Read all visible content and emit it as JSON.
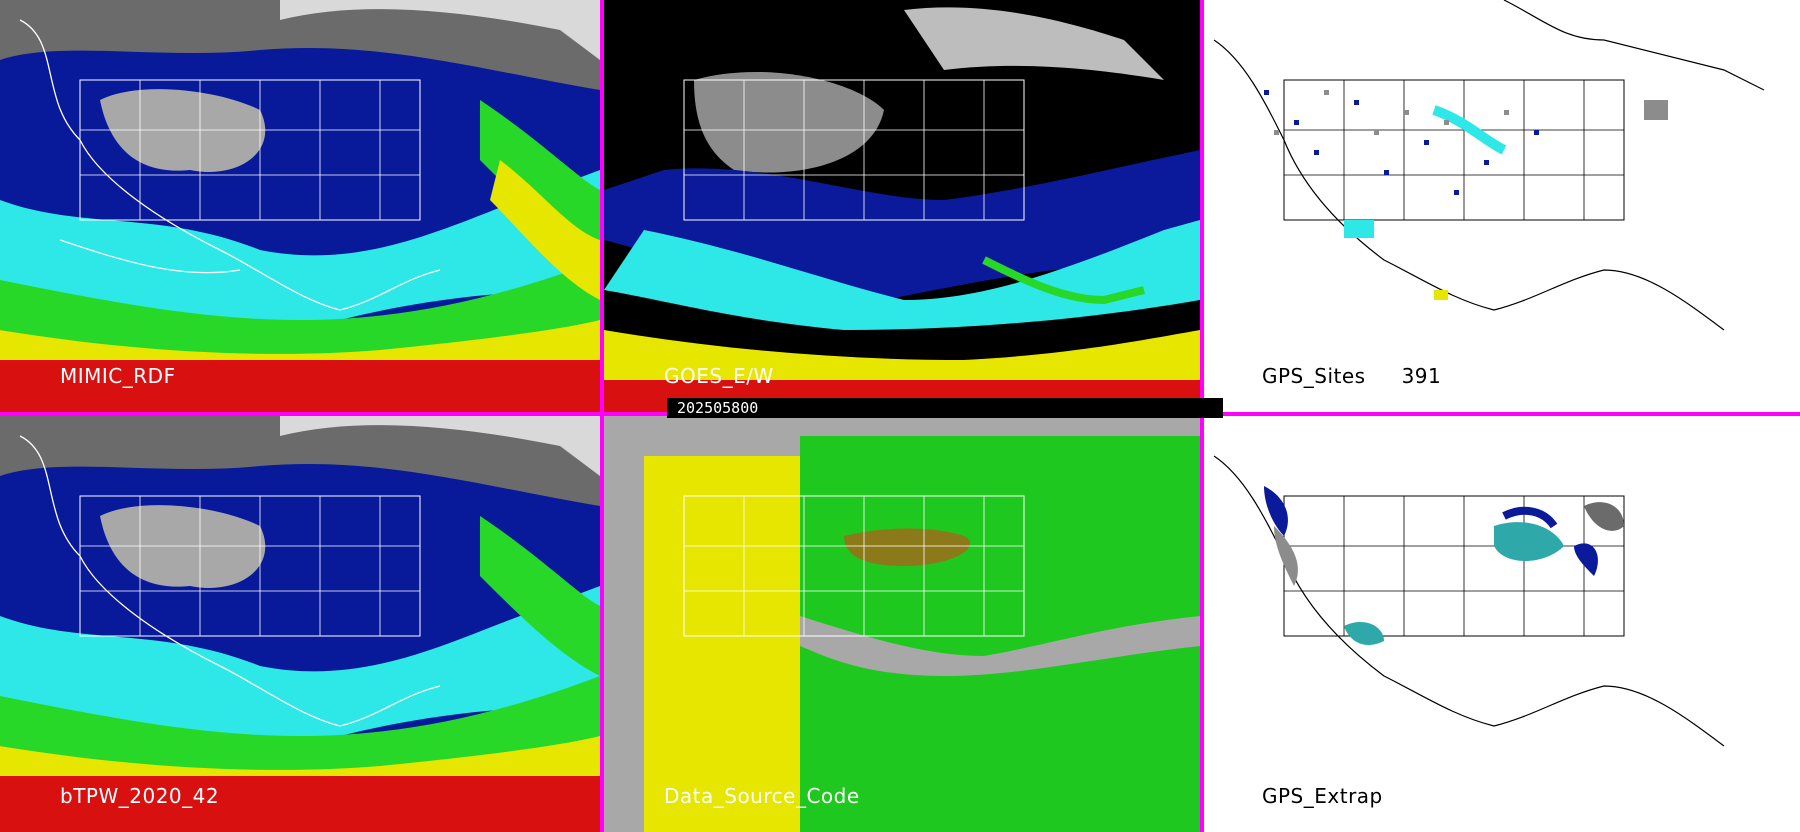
{
  "panels": [
    {
      "id": "mimic-tpw",
      "label": "MIMIC_RDF",
      "style": "tpw"
    },
    {
      "id": "goes-ew",
      "label": "GOES_E/W",
      "style": "goes"
    },
    {
      "id": "gps-sites",
      "label": "GPS_Sites",
      "count": "391",
      "style": "gps"
    },
    {
      "id": "btpw",
      "label": "bTPW_2020_42",
      "style": "tpw"
    },
    {
      "id": "data-source",
      "label": "Data_Source_Code",
      "style": "source"
    },
    {
      "id": "gps-extrap",
      "label": "GPS_Extrap",
      "style": "extrap"
    }
  ],
  "timestamp": "202505800",
  "colors": {
    "divider": "#ff00ff",
    "map_outline": "#ffffff",
    "map_outline_light": "#000000"
  }
}
